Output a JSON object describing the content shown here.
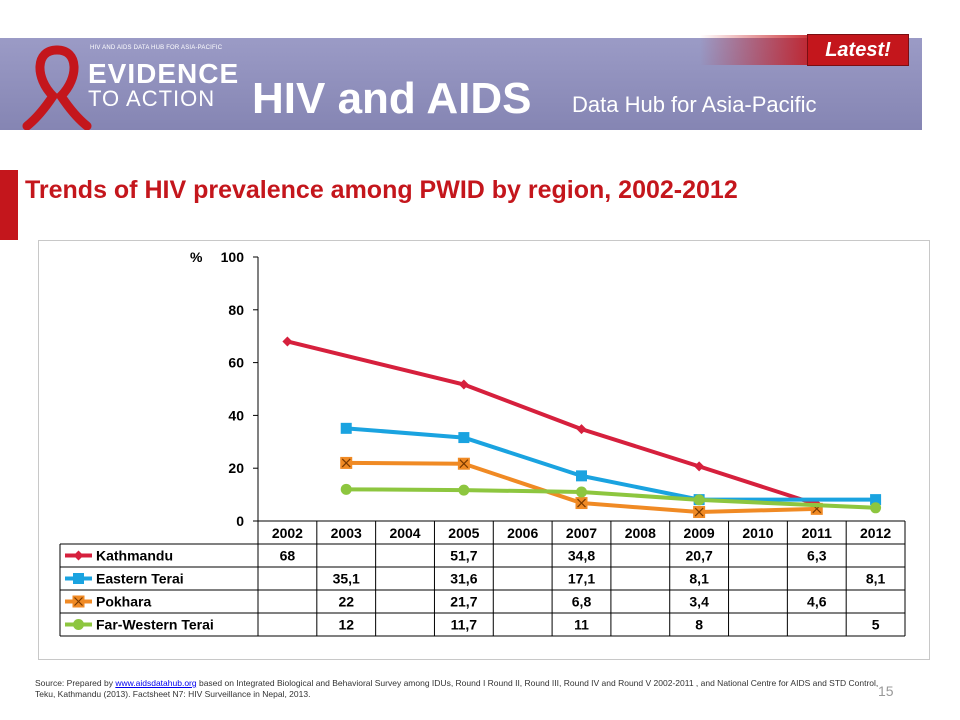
{
  "header": {
    "logo_top": "HIV AND AIDS DATA HUB FOR ASIA-PACIFIC",
    "logo_evidence": "EVIDENCE",
    "logo_to_action": "TO ACTION",
    "title": "HIV and AIDS",
    "subtitle": "Data Hub for Asia-Pacific",
    "badge": "Latest!"
  },
  "slide": {
    "title": "Trends of HIV prevalence among PWID by region, 2002-2012",
    "page_number": "15"
  },
  "source": {
    "prefix": "Source: Prepared by ",
    "link": "www.aidsdatahub.org",
    "rest": " based on Integrated Biological and Behavioral Survey among IDUs, Round I  Round II, Round III, Round IV and Round V 2002-2011 , and National Centre for AIDS and STD Control, Teku, Kathmandu (2013). Factsheet N7: HIV Surveillance in Nepal, 2013."
  },
  "chart_data": {
    "type": "line",
    "title": "",
    "ylabel": "%",
    "ylim": [
      0,
      100
    ],
    "yticks": [
      "0",
      "20",
      "40",
      "60",
      "80",
      "100"
    ],
    "categories": [
      "2002",
      "2003",
      "2004",
      "2005",
      "2006",
      "2007",
      "2008",
      "2009",
      "2010",
      "2011",
      "2012"
    ],
    "grid": false,
    "legend": "data-table",
    "series": [
      {
        "name": "Kathmandu",
        "color": "#d6203d",
        "marker": "diamond",
        "values": [
          68,
          null,
          null,
          51.7,
          null,
          34.8,
          null,
          20.7,
          null,
          6.3,
          null
        ],
        "labels": [
          "68",
          "",
          "",
          "51,7",
          "",
          "34,8",
          "",
          "20,7",
          "",
          "6,3",
          ""
        ]
      },
      {
        "name": "Eastern Terai",
        "color": "#1aa3e0",
        "marker": "square",
        "values": [
          null,
          35.1,
          null,
          31.6,
          null,
          17.1,
          null,
          8.1,
          null,
          null,
          8.1
        ],
        "labels": [
          "",
          "35,1",
          "",
          "31,6",
          "",
          "17,1",
          "",
          "8,1",
          "",
          "",
          "8,1"
        ]
      },
      {
        "name": "Pokhara",
        "color": "#f08a24",
        "marker": "x-square",
        "values": [
          null,
          22,
          null,
          21.7,
          null,
          6.8,
          null,
          3.4,
          null,
          4.6,
          null
        ],
        "labels": [
          "",
          "22",
          "",
          "21,7",
          "",
          "6,8",
          "",
          "3,4",
          "",
          "4,6",
          ""
        ]
      },
      {
        "name": "Far-Western Terai",
        "color": "#8dc63f",
        "marker": "circle",
        "values": [
          null,
          12,
          null,
          11.7,
          null,
          11,
          null,
          8,
          null,
          null,
          5
        ],
        "labels": [
          "",
          "12",
          "",
          "11,7",
          "",
          "11",
          "",
          "8",
          "",
          "",
          "5"
        ]
      }
    ]
  }
}
